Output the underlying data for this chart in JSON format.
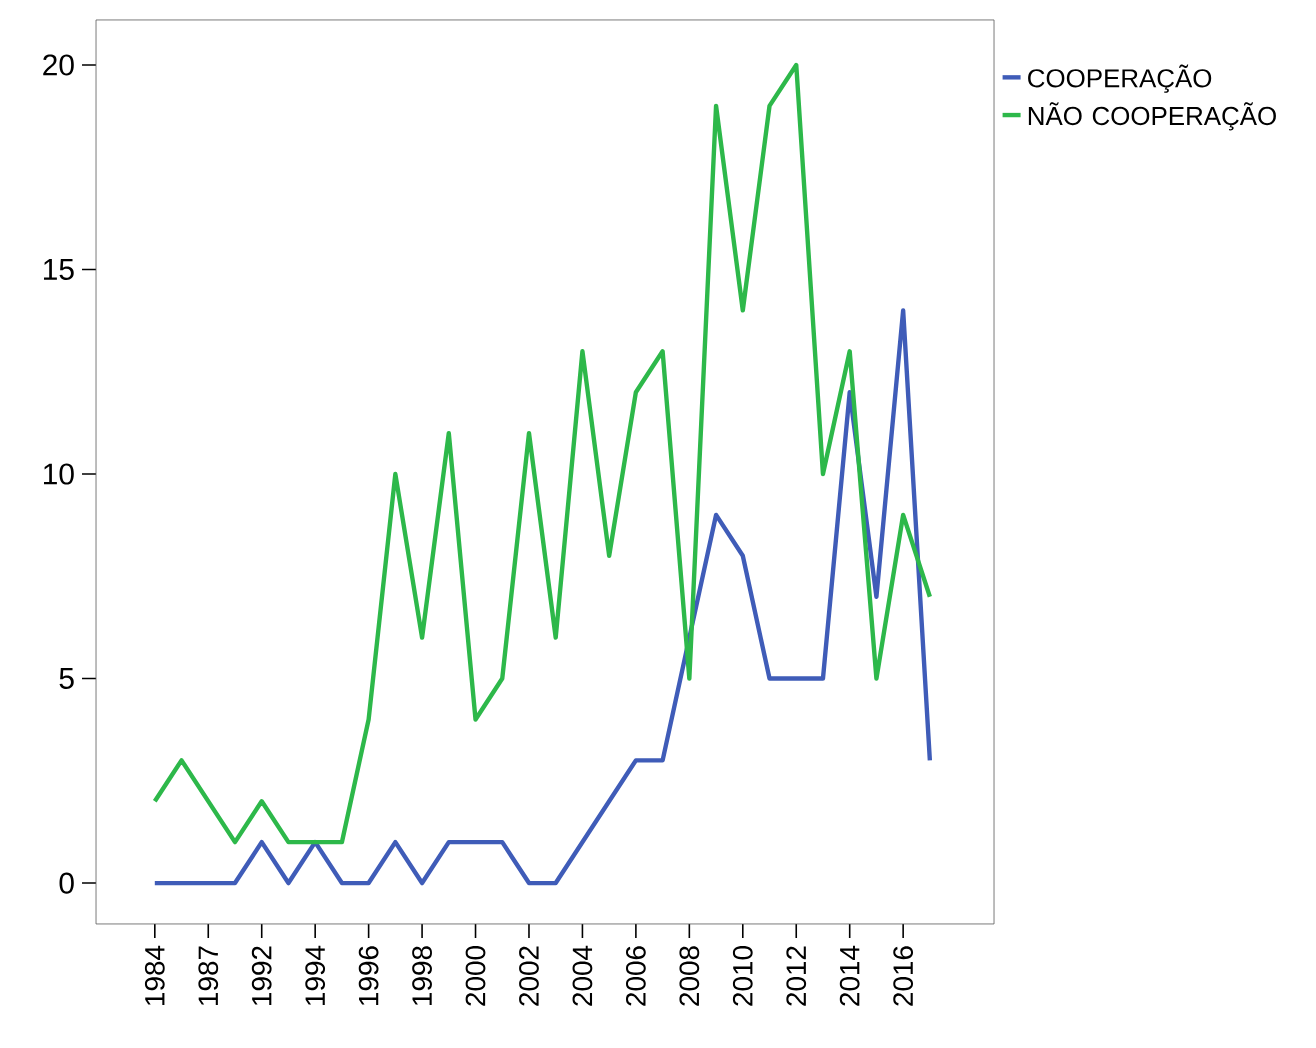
{
  "chart_data": {
    "type": "line",
    "categories": [
      "1984",
      null,
      "1987",
      null,
      "1992",
      null,
      "1994",
      null,
      "1996",
      null,
      "1998",
      null,
      "2000",
      null,
      "2002",
      null,
      "2004",
      null,
      "2006",
      null,
      "2008",
      null,
      "2010",
      null,
      "2012",
      null,
      "2014",
      null,
      "2016",
      null
    ],
    "series": [
      {
        "name": "COOPERAÇÃO",
        "color": "#3f5cb8",
        "values": [
          0,
          0,
          0,
          0,
          1,
          0,
          1,
          0,
          0,
          1,
          0,
          1,
          1,
          1,
          0,
          0,
          1,
          2,
          3,
          3,
          6,
          9,
          8,
          5,
          5,
          5,
          12,
          7,
          14,
          3
        ]
      },
      {
        "name": "NÃO COOPERAÇÃO",
        "color": "#2db84a",
        "values": [
          2,
          3,
          2,
          1,
          2,
          1,
          1,
          1,
          4,
          10,
          6,
          11,
          4,
          5,
          11,
          6,
          13,
          8,
          12,
          13,
          5,
          19,
          14,
          19,
          20,
          10,
          13,
          5,
          9,
          7
        ]
      }
    ],
    "ylim": [
      -1,
      21.1
    ],
    "yticks": [
      0,
      5,
      10,
      15,
      20
    ],
    "grid": false,
    "legend": "top right",
    "marker": "none",
    "line_style": "solid"
  }
}
